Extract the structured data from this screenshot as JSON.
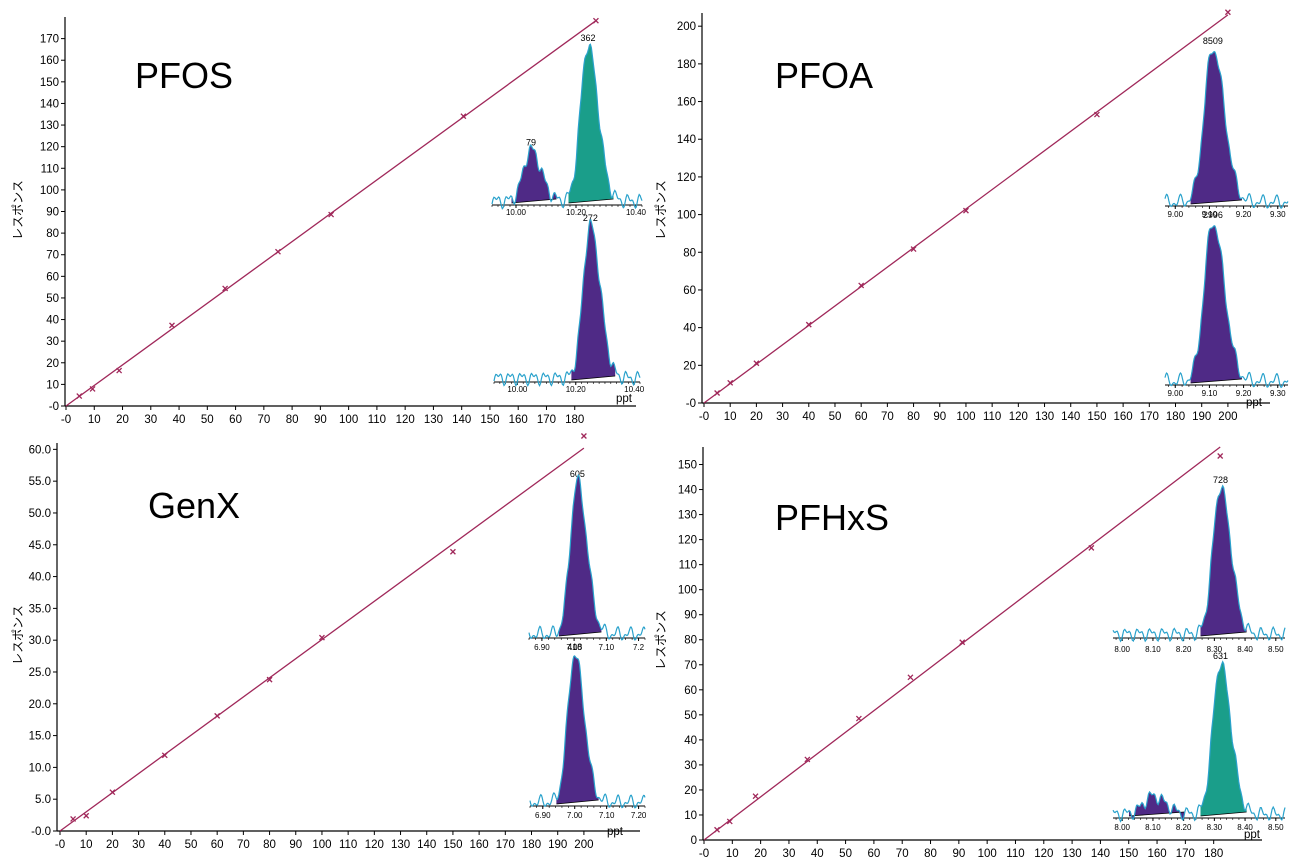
{
  "colors": {
    "line": "#a0285a",
    "marker": "#a0285a",
    "peak_purple": "#4f2a86",
    "peak_teal": "#1a9e8a",
    "peak_outline": "#2aa2cc",
    "axis": "#000000"
  },
  "chart_data": [
    {
      "type": "scatter",
      "title": "PFOS",
      "xlabel": "ppt",
      "ylabel": "レスポンス",
      "xlim": [
        0,
        190
      ],
      "ylim": [
        0,
        180
      ],
      "xticks": [
        "-0",
        "10",
        "20",
        "30",
        "40",
        "50",
        "60",
        "70",
        "80",
        "90",
        "100",
        "110",
        "120",
        "130",
        "140",
        "150",
        "160",
        "170",
        "180"
      ],
      "yticks": [
        "-0",
        "10",
        "20",
        "30",
        "40",
        "50",
        "60",
        "70",
        "80",
        "90",
        "100",
        "110",
        "120",
        "130",
        "140",
        "150",
        "160",
        "170"
      ],
      "points": [
        [
          4.7,
          4.6
        ],
        [
          9.4,
          7.9
        ],
        [
          18.8,
          16.4
        ],
        [
          37.5,
          37.3
        ],
        [
          56.3,
          54.4
        ],
        [
          75,
          71.4
        ],
        [
          93.8,
          88.6
        ],
        [
          140.6,
          134.1
        ],
        [
          187.5,
          178.3
        ]
      ],
      "fit_line": [
        [
          0,
          0
        ],
        [
          187.5,
          178.3
        ]
      ],
      "insets": [
        {
          "peaks": [
            {
              "label": "79",
              "rt": 10.05,
              "height": 0.33,
              "width": 0.025,
              "color": "purple"
            },
            {
              "label": "362",
              "rt": 10.24,
              "height": 1.0,
              "width": 0.025,
              "color": "teal"
            }
          ],
          "xticks": [
            "10.00",
            "10.20",
            "10.40"
          ],
          "xrange": [
            9.92,
            10.42
          ]
        },
        {
          "peaks": [
            {
              "label": "272",
              "rt": 10.25,
              "height": 1.0,
              "width": 0.025,
              "color": "purple"
            }
          ],
          "xticks": [
            "10.00",
            "10.20",
            "10.40"
          ],
          "xrange": [
            9.92,
            10.42
          ]
        }
      ]
    },
    {
      "type": "scatter",
      "title": "PFOA",
      "xlabel": "ppt",
      "ylabel": "レスポンス",
      "xlim": [
        0,
        205
      ],
      "ylim": [
        0,
        207
      ],
      "xticks": [
        "-0",
        "10",
        "20",
        "30",
        "40",
        "50",
        "60",
        "70",
        "80",
        "90",
        "100",
        "110",
        "120",
        "130",
        "140",
        "150",
        "160",
        "170",
        "180",
        "190",
        "200"
      ],
      "yticks": [
        "-0",
        "20",
        "40",
        "60",
        "80",
        "100",
        "120",
        "140",
        "160",
        "180",
        "200"
      ],
      "points": [
        [
          5,
          5.3
        ],
        [
          10,
          10.7
        ],
        [
          20,
          21.1
        ],
        [
          40,
          41.6
        ],
        [
          60,
          62.4
        ],
        [
          80,
          81.7
        ],
        [
          100,
          102.1
        ],
        [
          150,
          153.1
        ],
        [
          200,
          207.4
        ]
      ],
      "fit_line": [
        [
          0,
          0
        ],
        [
          200,
          206
        ]
      ],
      "insets": [
        {
          "peaks": [
            {
              "label": "8509",
              "rt": 9.11,
              "height": 1.0,
              "width": 0.025,
              "color": "purple"
            }
          ],
          "xticks": [
            "9.00",
            "9.10",
            "9.20",
            "9.30"
          ],
          "xrange": [
            8.97,
            9.33
          ]
        },
        {
          "peaks": [
            {
              "label": "2996",
              "rt": 9.11,
              "height": 1.0,
              "width": 0.025,
              "color": "purple"
            }
          ],
          "xticks": [
            "9.00",
            "9.10",
            "9.20",
            "9.30"
          ],
          "xrange": [
            8.97,
            9.33
          ]
        }
      ]
    },
    {
      "type": "scatter",
      "title": "GenX",
      "xlabel": "ppt",
      "ylabel": "レスポンス",
      "xlim": [
        0,
        205
      ],
      "ylim": [
        0,
        61
      ],
      "xticks": [
        "-0",
        "10",
        "20",
        "30",
        "40",
        "50",
        "60",
        "70",
        "80",
        "90",
        "100",
        "110",
        "120",
        "130",
        "140",
        "150",
        "160",
        "170",
        "180",
        "190",
        "200"
      ],
      "yticks": [
        "-0.0",
        "5.0",
        "10.0",
        "15.0",
        "20.0",
        "25.0",
        "30.0",
        "35.0",
        "40.0",
        "45.0",
        "50.0",
        "55.0",
        "60.0"
      ],
      "points": [
        [
          5,
          1.9
        ],
        [
          10,
          2.4
        ],
        [
          20,
          6.1
        ],
        [
          40,
          11.9
        ],
        [
          60,
          18.1
        ],
        [
          80,
          23.8
        ],
        [
          100,
          30.4
        ],
        [
          150,
          43.9
        ],
        [
          200,
          62.1
        ]
      ],
      "fit_line": [
        [
          0,
          0
        ],
        [
          200,
          60.2
        ]
      ],
      "insets": [
        {
          "peaks": [
            {
              "label": "605",
              "rt": 7.01,
              "height": 1.0,
              "width": 0.022,
              "color": "purple"
            }
          ],
          "xticks": [
            "6.90",
            "7.00",
            "7.10",
            "7.2"
          ],
          "xrange": [
            6.86,
            7.22
          ]
        },
        {
          "peaks": [
            {
              "label": "418",
              "rt": 7.0,
              "height": 1.0,
              "width": 0.022,
              "color": "purple"
            }
          ],
          "xticks": [
            "6.90",
            "7.00",
            "7.10",
            "7.20"
          ],
          "xrange": [
            6.86,
            7.22
          ]
        }
      ]
    },
    {
      "type": "scatter",
      "title": "PFHxS",
      "xlabel": "ppt",
      "ylabel": "レスポンス",
      "xlim": [
        0,
        190
      ],
      "ylim": [
        0,
        157
      ],
      "xticks": [
        "-0",
        "10",
        "20",
        "30",
        "40",
        "50",
        "60",
        "70",
        "80",
        "90",
        "100",
        "110",
        "120",
        "130",
        "140",
        "150",
        "160",
        "170",
        "180"
      ],
      "yticks": [
        "0",
        "10",
        "20",
        "30",
        "40",
        "50",
        "60",
        "70",
        "80",
        "90",
        "100",
        "110",
        "120",
        "130",
        "140",
        "150"
      ],
      "points": [
        [
          4.6,
          4.1
        ],
        [
          9.1,
          7.4
        ],
        [
          18.2,
          17.5
        ],
        [
          36.5,
          32.2
        ],
        [
          54.7,
          48.5
        ],
        [
          72.9,
          65
        ],
        [
          91.2,
          79
        ],
        [
          136.8,
          116.7
        ],
        [
          182.3,
          153.4
        ]
      ],
      "fit_line": [
        [
          0,
          0
        ],
        [
          182.3,
          157
        ]
      ],
      "insets": [
        {
          "peaks": [
            {
              "label": "728",
              "rt": 8.32,
              "height": 1.0,
              "width": 0.025,
              "color": "purple"
            }
          ],
          "xticks": [
            "8.00",
            "8.10",
            "8.20",
            "8.30",
            "8.40",
            "8.50"
          ],
          "xrange": [
            7.97,
            8.53
          ]
        },
        {
          "peaks": [
            {
              "label": "",
              "rt": 8.1,
              "height": 0.12,
              "width": 0.03,
              "color": "purple"
            },
            {
              "label": "631",
              "rt": 8.32,
              "height": 1.0,
              "width": 0.025,
              "color": "teal"
            }
          ],
          "xticks": [
            "8.00",
            "8.10",
            "8.20",
            "8.30",
            "8.40",
            "8.50"
          ],
          "xrange": [
            7.97,
            8.53
          ]
        }
      ]
    }
  ]
}
